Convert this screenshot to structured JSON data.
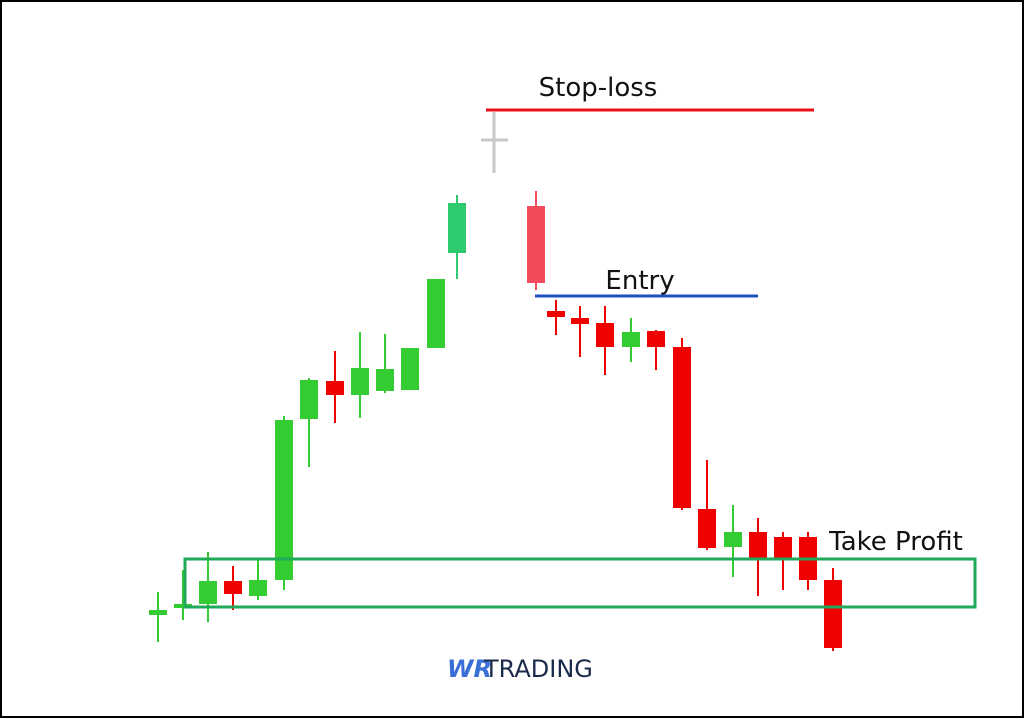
{
  "labels": {
    "stop_loss": "Stop-loss",
    "entry": "Entry",
    "take_profit": "Take Profit"
  },
  "logo": {
    "mark": "WR",
    "text": "TRADING"
  }
}
